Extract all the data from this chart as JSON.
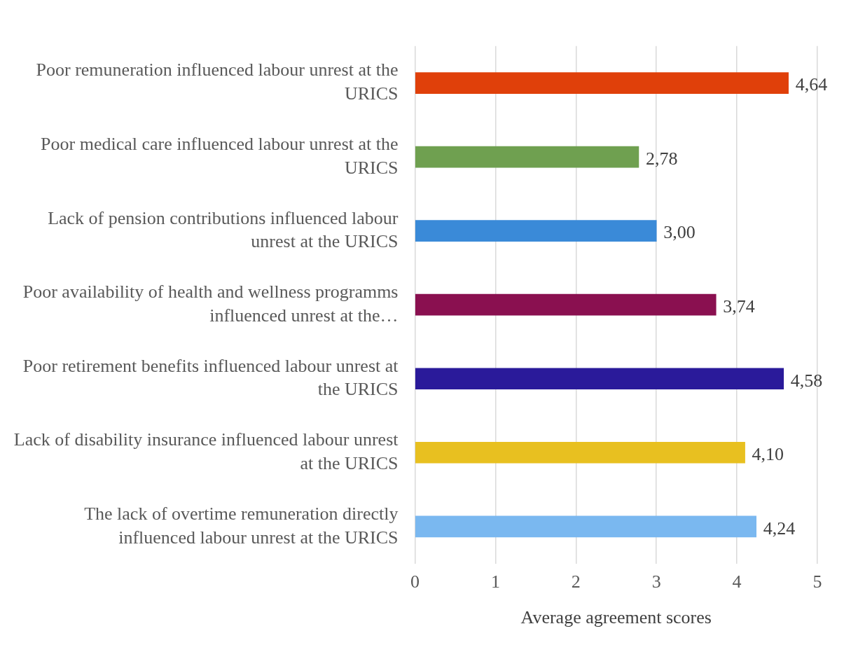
{
  "chart_data": {
    "type": "bar",
    "orientation": "horizontal",
    "xlabel": "Average agreement scores",
    "categories": [
      "Poor remuneration influenced labour unrest at the URICS",
      "Poor medical care influenced labour unrest at the URICS",
      "Lack of pension contributions influenced labour unrest at the URICS",
      "Poor availability of health and wellness programms influenced unrest at the…",
      "Poor retirement benefits influenced labour unrest at the URICS",
      "Lack of disability insurance influenced labour unrest at the URICS",
      "The lack of overtime remuneration directly influenced labour unrest at the URICS"
    ],
    "values": [
      4.64,
      2.78,
      3.0,
      3.74,
      4.58,
      4.1,
      4.24
    ],
    "colors": [
      "#e0400a",
      "#6fa050",
      "#3a8ad8",
      "#8a1050",
      "#2a1a9a",
      "#e8c020",
      "#7ab8f0"
    ],
    "value_labels": [
      "4,64",
      "2,78",
      "3,00",
      "3,74",
      "4,58",
      "4,10",
      "4,24"
    ],
    "xlim": [
      0,
      5
    ],
    "xticks": [
      0,
      1,
      2,
      3,
      4,
      5
    ],
    "grid": "x",
    "legend": false
  }
}
